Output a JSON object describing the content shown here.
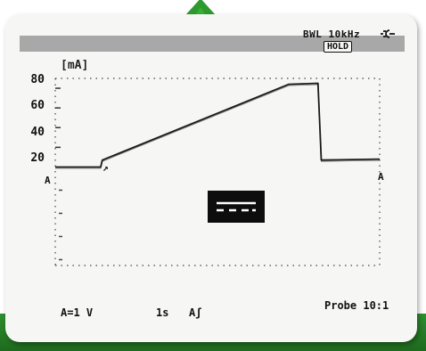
{
  "header": {
    "bandwidth": "BWL 10kHz",
    "hold": "HOLD",
    "unit": "[mA]"
  },
  "icons": {
    "plug": "plug-icon",
    "dc": "dc-symbol-icon",
    "arrow": "green-arrow-icon"
  },
  "axis": {
    "y_ticks": [
      "80",
      "60",
      "40",
      "20"
    ]
  },
  "markers": {
    "left": "A",
    "right": "A",
    "trigger": "↗"
  },
  "footer": {
    "scale": "A=1 V",
    "timebase": "1s",
    "trigger_mode": "Aʃ",
    "probe": "Probe 10:1"
  },
  "colors": {
    "accent_green": "#2e8b2e",
    "header_bar": "#a8a8a8",
    "trace": "#1a1a1a"
  },
  "chart_data": {
    "type": "line",
    "ylabel": "[mA]",
    "y_ticks": [
      20,
      40,
      60,
      80
    ],
    "ylim": [
      -100,
      90
    ],
    "series": [
      {
        "points": [
          [
            0,
            0
          ],
          [
            1.4,
            0
          ],
          [
            1.45,
            7
          ],
          [
            7.2,
            84
          ],
          [
            8.1,
            85
          ],
          [
            8.2,
            7
          ],
          [
            10,
            8
          ]
        ]
      }
    ],
    "grid": "dotted"
  }
}
